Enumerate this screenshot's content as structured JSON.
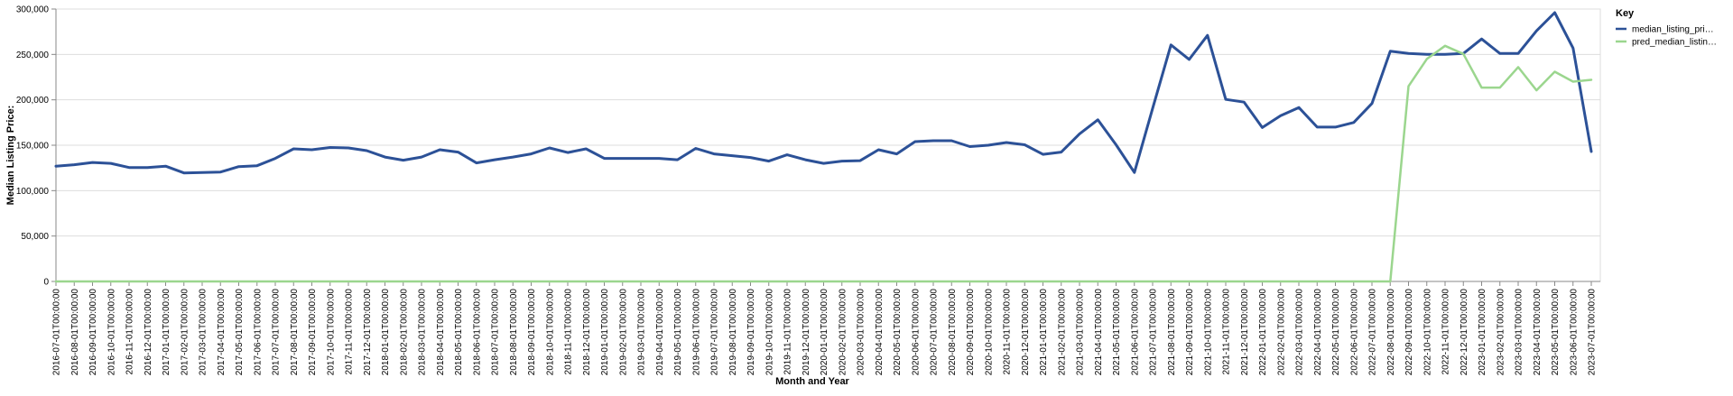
{
  "chart_data": {
    "type": "line",
    "xlabel": "Month and Year",
    "ylabel": "Median Listing Price:",
    "ylim": [
      0,
      300000
    ],
    "y_ticks": [
      "0",
      "50,000",
      "100,000",
      "150,000",
      "200,000",
      "250,000",
      "300,000"
    ],
    "grid": true,
    "legend": {
      "title": "Key",
      "placement": "top-right",
      "entries": [
        "median_listing_pri…",
        "pred_median_listin…"
      ]
    },
    "categories": [
      "2016-07-01T00:00:00",
      "2016-08-01T00:00:00",
      "2016-09-01T00:00:00",
      "2016-10-01T00:00:00",
      "2016-11-01T00:00:00",
      "2016-12-01T00:00:00",
      "2017-01-01T00:00:00",
      "2017-02-01T00:00:00",
      "2017-03-01T00:00:00",
      "2017-04-01T00:00:00",
      "2017-05-01T00:00:00",
      "2017-06-01T00:00:00",
      "2017-07-01T00:00:00",
      "2017-08-01T00:00:00",
      "2017-09-01T00:00:00",
      "2017-10-01T00:00:00",
      "2017-11-01T00:00:00",
      "2017-12-01T00:00:00",
      "2018-01-01T00:00:00",
      "2018-02-01T00:00:00",
      "2018-03-01T00:00:00",
      "2018-04-01T00:00:00",
      "2018-05-01T00:00:00",
      "2018-06-01T00:00:00",
      "2018-07-01T00:00:00",
      "2018-08-01T00:00:00",
      "2018-09-01T00:00:00",
      "2018-10-01T00:00:00",
      "2018-11-01T00:00:00",
      "2018-12-01T00:00:00",
      "2019-01-01T00:00:00",
      "2019-02-01T00:00:00",
      "2019-03-01T00:00:00",
      "2019-04-01T00:00:00",
      "2019-05-01T00:00:00",
      "2019-06-01T00:00:00",
      "2019-07-01T00:00:00",
      "2019-08-01T00:00:00",
      "2019-09-01T00:00:00",
      "2019-10-01T00:00:00",
      "2019-11-01T00:00:00",
      "2019-12-01T00:00:00",
      "2020-01-01T00:00:00",
      "2020-02-01T00:00:00",
      "2020-03-01T00:00:00",
      "2020-04-01T00:00:00",
      "2020-05-01T00:00:00",
      "2020-06-01T00:00:00",
      "2020-07-01T00:00:00",
      "2020-08-01T00:00:00",
      "2020-09-01T00:00:00",
      "2020-10-01T00:00:00",
      "2020-11-01T00:00:00",
      "2020-12-01T00:00:00",
      "2021-01-01T00:00:00",
      "2021-02-01T00:00:00",
      "2021-03-01T00:00:00",
      "2021-04-01T00:00:00",
      "2021-05-01T00:00:00",
      "2021-06-01T00:00:00",
      "2021-07-01T00:00:00",
      "2021-08-01T00:00:00",
      "2021-09-01T00:00:00",
      "2021-10-01T00:00:00",
      "2021-11-01T00:00:00",
      "2021-12-01T00:00:00",
      "2022-01-01T00:00:00",
      "2022-02-01T00:00:00",
      "2022-03-01T00:00:00",
      "2022-04-01T00:00:00",
      "2022-05-01T00:00:00",
      "2022-06-01T00:00:00",
      "2022-07-01T00:00:00",
      "2022-08-01T00:00:00",
      "2022-09-01T00:00:00",
      "2022-10-01T00:00:00",
      "2022-11-01T00:00:00",
      "2022-12-01T00:00:00",
      "2023-01-01T00:00:00",
      "2023-02-01T00:00:00",
      "2023-03-01T00:00:00",
      "2023-04-01T00:00:00",
      "2023-05-01T00:00:00",
      "2023-06-01T00:00:00",
      "2023-07-01T00:00:00"
    ],
    "series": [
      {
        "name": "median_listing_pri…",
        "color": "#2c5197",
        "values": [
          127000,
          128500,
          131000,
          130000,
          125500,
          125500,
          127000,
          119500,
          120000,
          120500,
          126500,
          127500,
          135500,
          146000,
          145000,
          147500,
          147000,
          144000,
          137000,
          133500,
          137000,
          145000,
          142500,
          130500,
          134000,
          137000,
          140500,
          147000,
          142000,
          146000,
          135500,
          135500,
          135500,
          135500,
          134000,
          146500,
          140500,
          138500,
          136500,
          132500,
          139500,
          134000,
          130000,
          132500,
          133000,
          145000,
          140500,
          154000,
          155000,
          155000,
          148500,
          150000,
          153000,
          150500,
          140000,
          142500,
          162500,
          178000,
          150500,
          120000,
          190500,
          260500,
          244500,
          271000,
          200500,
          197500,
          169500,
          182500,
          191500,
          170000,
          170000,
          175000,
          196000,
          253500,
          251000,
          250000,
          250000,
          251000,
          267000,
          251000,
          251000,
          276000,
          296000,
          257000,
          143000
        ]
      },
      {
        "name": "pred_median_listin…",
        "color": "#9bd68e",
        "values": [
          0,
          0,
          0,
          0,
          0,
          0,
          0,
          0,
          0,
          0,
          0,
          0,
          0,
          0,
          0,
          0,
          0,
          0,
          0,
          0,
          0,
          0,
          0,
          0,
          0,
          0,
          0,
          0,
          0,
          0,
          0,
          0,
          0,
          0,
          0,
          0,
          0,
          0,
          0,
          0,
          0,
          0,
          0,
          0,
          0,
          0,
          0,
          0,
          0,
          0,
          0,
          0,
          0,
          0,
          0,
          0,
          0,
          0,
          0,
          0,
          0,
          0,
          0,
          0,
          0,
          0,
          0,
          0,
          0,
          0,
          0,
          0,
          0,
          0,
          215000,
          245000,
          259500,
          250500,
          213500,
          213500,
          236000,
          210500,
          231000,
          220000,
          222000
        ]
      }
    ]
  }
}
